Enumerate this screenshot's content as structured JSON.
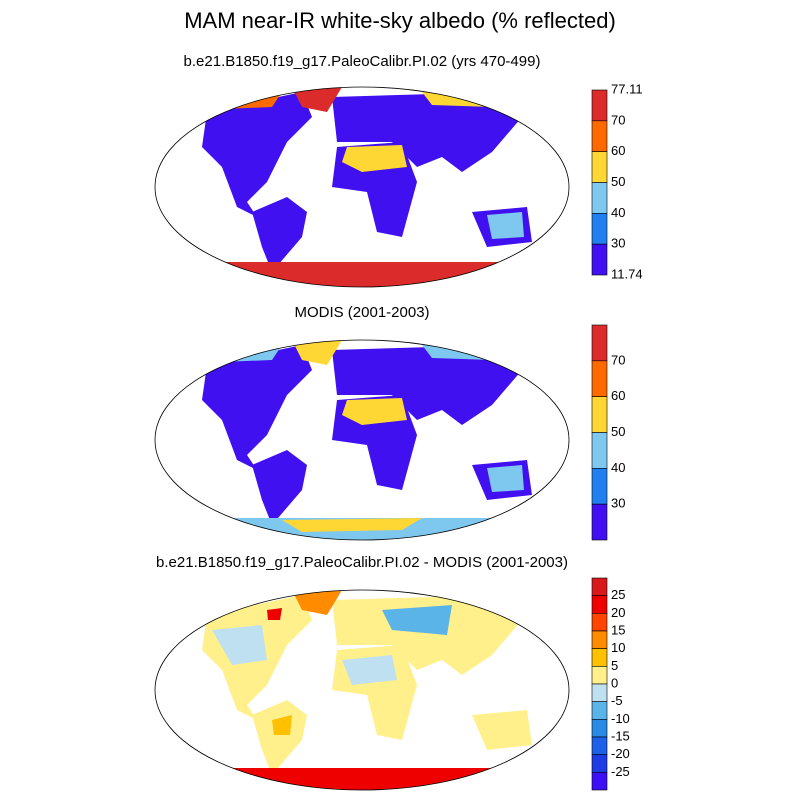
{
  "title": "MAM near-IR white-sky albedo (% reflected)",
  "panels": [
    {
      "title": "b.e21.B1850.f19_g17.PaleoCalibr.PI.02 (yrs 470-499)",
      "colorbar": {
        "colors": [
          "#dc2b2b",
          "#ff6a00",
          "#ffd734",
          "#7ec8f0",
          "#2080f0",
          "#4010f0"
        ],
        "labels": [
          "77.11",
          "70",
          "60",
          "50",
          "40",
          "30",
          "11.74"
        ]
      }
    },
    {
      "title": "MODIS (2001-2003)",
      "colorbar": {
        "colors": [
          "#dc2b2b",
          "#ff6a00",
          "#ffd734",
          "#7ec8f0",
          "#2080f0",
          "#4010f0"
        ],
        "labels": [
          "70",
          "60",
          "50",
          "40",
          "30"
        ]
      }
    },
    {
      "title": "b.e21.B1850.f19_g17.PaleoCalibr.PI.02 - MODIS (2001-2003)",
      "colorbar": {
        "colors": [
          "#d7191c",
          "#ee0000",
          "#ff4500",
          "#ff8c00",
          "#ffc000",
          "#fff08c",
          "#bfe0f0",
          "#5ab4e8",
          "#2a8ae8",
          "#1e60e6",
          "#1e3ce6",
          "#3c0ff5"
        ],
        "labels": [
          "25",
          "20",
          "15",
          "10",
          "5",
          "0",
          "-5",
          "-10",
          "-15",
          "-20",
          "-25"
        ]
      }
    }
  ]
}
